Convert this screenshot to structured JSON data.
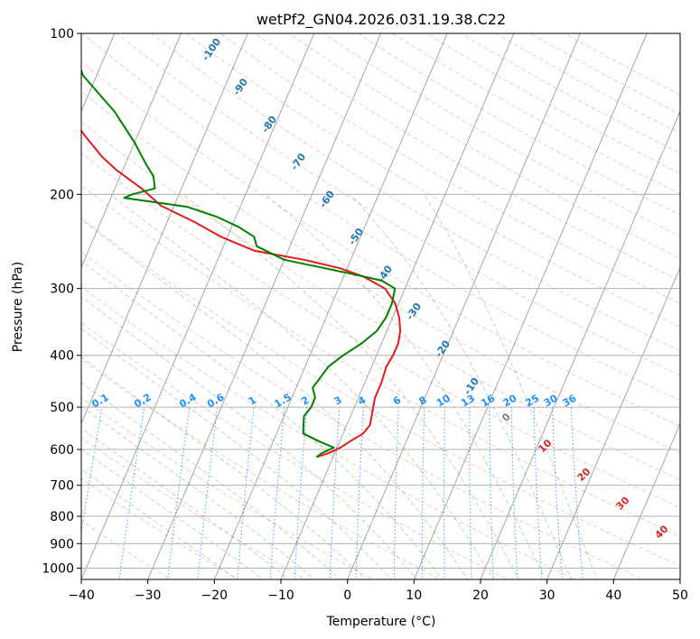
{
  "chart_data": {
    "type": "line",
    "chart_kind": "skew-t log-p diagram",
    "title": "wetPf2_GN04.2026.031.19.38.C22",
    "xlabel": "Temperature (°C)",
    "ylabel": "Pressure (hPa)",
    "xlim": [
      -40,
      50
    ],
    "ylim": [
      1050,
      100
    ],
    "y_scale": "log",
    "skew": 35,
    "grid": true,
    "x_ticks": [
      "−40",
      "−30",
      "−20",
      "−10",
      "0",
      "10",
      "20",
      "30",
      "40",
      "50"
    ],
    "y_ticks": [
      "100",
      "200",
      "300",
      "400",
      "500",
      "600",
      "700",
      "800",
      "900",
      "1000"
    ],
    "series": [
      {
        "role": "temperature",
        "color": "#e41a1c",
        "points": [
          [
            -12.5,
            620
          ],
          [
            -11,
            610
          ],
          [
            -9.5,
            595
          ],
          [
            -8.5,
            580
          ],
          [
            -7,
            560
          ],
          [
            -6.5,
            540
          ],
          [
            -7,
            510
          ],
          [
            -7.5,
            480
          ],
          [
            -7.5,
            450
          ],
          [
            -7.8,
            420
          ],
          [
            -7.5,
            400
          ],
          [
            -7.5,
            380
          ],
          [
            -8,
            360
          ],
          [
            -9,
            340
          ],
          [
            -10.5,
            320
          ],
          [
            -13,
            300
          ],
          [
            -17,
            285
          ],
          [
            -21,
            275
          ],
          [
            -27,
            265
          ],
          [
            -35,
            255
          ],
          [
            -41,
            240
          ],
          [
            -46,
            225
          ],
          [
            -52,
            210
          ],
          [
            -56,
            195
          ],
          [
            -61,
            180
          ],
          [
            -64,
            170
          ],
          [
            -68,
            155
          ],
          [
            -72,
            140
          ],
          [
            -76,
            125
          ],
          [
            -79,
            113
          ],
          [
            -81,
            100
          ]
        ]
      },
      {
        "role": "dewpoint",
        "color": "#008000",
        "points": [
          [
            -12.5,
            620
          ],
          [
            -12,
            610
          ],
          [
            -10.5,
            595
          ],
          [
            -13,
            580
          ],
          [
            -16,
            560
          ],
          [
            -16.5,
            540
          ],
          [
            -17,
            520
          ],
          [
            -16.5,
            500
          ],
          [
            -16.5,
            480
          ],
          [
            -17.5,
            460
          ],
          [
            -17,
            440
          ],
          [
            -16.5,
            420
          ],
          [
            -15,
            400
          ],
          [
            -13,
            380
          ],
          [
            -11.5,
            360
          ],
          [
            -11,
            340
          ],
          [
            -11,
            320
          ],
          [
            -11.5,
            300
          ],
          [
            -14,
            290
          ],
          [
            -20,
            280
          ],
          [
            -30,
            265
          ],
          [
            -35,
            250
          ],
          [
            -36,
            240
          ],
          [
            -39,
            230
          ],
          [
            -43,
            220
          ],
          [
            -48,
            211
          ],
          [
            -58,
            203
          ],
          [
            -57,
            200
          ],
          [
            -54,
            195
          ],
          [
            -55,
            185
          ],
          [
            -57,
            175
          ],
          [
            -60,
            160
          ],
          [
            -65,
            140
          ],
          [
            -72,
            120
          ],
          [
            -77,
            100
          ]
        ]
      }
    ],
    "background_lines": {
      "dry_adiabats_color": "#fa8072",
      "moist_adiabats_color": "#2ca02c",
      "mixing_ratio_color": "#1f77b4",
      "isotherm_color": "#808080"
    },
    "annotations": {
      "frost_point_labels": [
        "-100",
        "-90",
        "-80",
        "-70",
        "-60",
        "-50",
        "-40",
        "-30",
        "-20",
        "-10"
      ],
      "mixing_ratio_labels": [
        "0.1",
        "0.2",
        "0.4",
        "0.6",
        "1",
        "1.5",
        "2",
        "3",
        "4",
        "6",
        "8",
        "10",
        "13",
        "16",
        "20",
        "25",
        "30",
        "36"
      ],
      "wet_bulb_labels": [
        "0",
        "10",
        "20",
        "30",
        "40"
      ]
    }
  }
}
